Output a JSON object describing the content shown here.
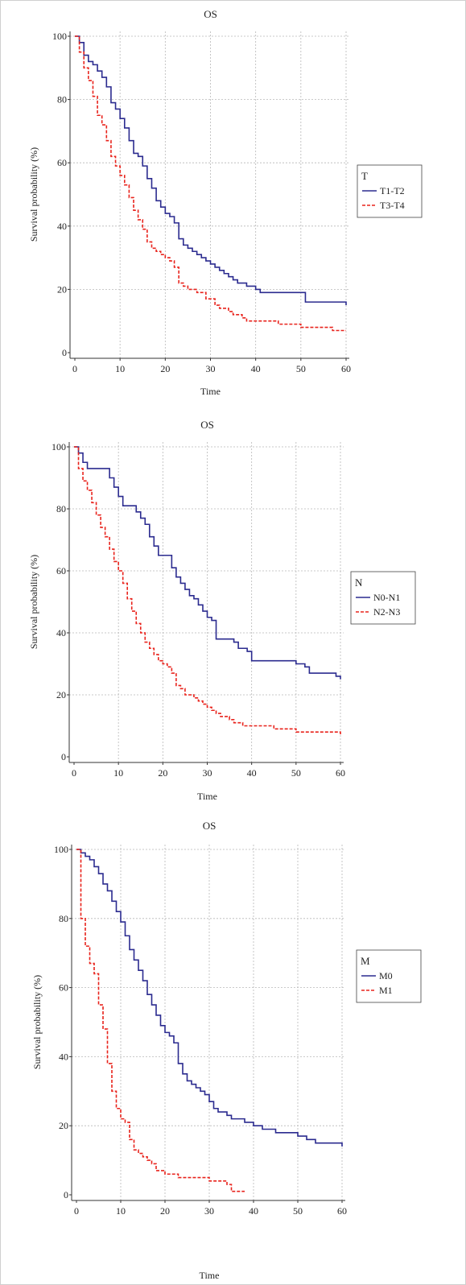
{
  "chart_data": [
    {
      "type": "line",
      "title": "OS",
      "xlabel": "Time",
      "ylabel": "Survival probability (%)",
      "xlim": [
        0,
        60
      ],
      "ylim": [
        0,
        100
      ],
      "xticks": [
        "0",
        "10",
        "20",
        "30",
        "40",
        "50",
        "60"
      ],
      "yticks": [
        "0",
        "20",
        "40",
        "60",
        "80",
        "100"
      ],
      "grid": true,
      "legend": {
        "title": "T",
        "placement": "right"
      },
      "series": [
        {
          "name": "T1-T2",
          "color": "#2b2b8f",
          "style": "solid",
          "points": [
            [
              0,
              100
            ],
            [
              1,
              98
            ],
            [
              2,
              94
            ],
            [
              3,
              92
            ],
            [
              4,
              91
            ],
            [
              5,
              89
            ],
            [
              6,
              87
            ],
            [
              7,
              84
            ],
            [
              8,
              79
            ],
            [
              9,
              77
            ],
            [
              10,
              74
            ],
            [
              11,
              71
            ],
            [
              12,
              67
            ],
            [
              13,
              63
            ],
            [
              14,
              62
            ],
            [
              15,
              59
            ],
            [
              16,
              55
            ],
            [
              17,
              52
            ],
            [
              18,
              48
            ],
            [
              19,
              46
            ],
            [
              20,
              44
            ],
            [
              21,
              43
            ],
            [
              22,
              41
            ],
            [
              23,
              36
            ],
            [
              24,
              34
            ],
            [
              25,
              33
            ],
            [
              26,
              32
            ],
            [
              27,
              31
            ],
            [
              28,
              30
            ],
            [
              29,
              29
            ],
            [
              30,
              28
            ],
            [
              31,
              27
            ],
            [
              32,
              26
            ],
            [
              33,
              25
            ],
            [
              34,
              24
            ],
            [
              35,
              23
            ],
            [
              36,
              22
            ],
            [
              38,
              21
            ],
            [
              40,
              20
            ],
            [
              41,
              19
            ],
            [
              45,
              19
            ],
            [
              50,
              19
            ],
            [
              51,
              16
            ],
            [
              55,
              16
            ],
            [
              59,
              16
            ],
            [
              60,
              15
            ]
          ]
        },
        {
          "name": "T3-T4",
          "color": "#e8231c",
          "style": "dashed",
          "points": [
            [
              0,
              100
            ],
            [
              1,
              95
            ],
            [
              2,
              90
            ],
            [
              3,
              86
            ],
            [
              4,
              81
            ],
            [
              5,
              75
            ],
            [
              6,
              72
            ],
            [
              7,
              67
            ],
            [
              8,
              62
            ],
            [
              9,
              59
            ],
            [
              10,
              56
            ],
            [
              11,
              53
            ],
            [
              12,
              49
            ],
            [
              13,
              45
            ],
            [
              14,
              42
            ],
            [
              15,
              39
            ],
            [
              16,
              35
            ],
            [
              17,
              33
            ],
            [
              18,
              32
            ],
            [
              19,
              31
            ],
            [
              20,
              30
            ],
            [
              21,
              29
            ],
            [
              22,
              27
            ],
            [
              23,
              22
            ],
            [
              24,
              21
            ],
            [
              25,
              20
            ],
            [
              26,
              20
            ],
            [
              27,
              19
            ],
            [
              28,
              19
            ],
            [
              29,
              17
            ],
            [
              30,
              17
            ],
            [
              31,
              15
            ],
            [
              32,
              14
            ],
            [
              34,
              13
            ],
            [
              35,
              12
            ],
            [
              36,
              12
            ],
            [
              37,
              11
            ],
            [
              38,
              10
            ],
            [
              40,
              10
            ],
            [
              43,
              10
            ],
            [
              45,
              9
            ],
            [
              47,
              9
            ],
            [
              50,
              8
            ],
            [
              53,
              8
            ],
            [
              55,
              8
            ],
            [
              57,
              7
            ],
            [
              60,
              7
            ]
          ]
        }
      ]
    },
    {
      "type": "line",
      "title": "OS",
      "xlabel": "Time",
      "ylabel": "Survival probability (%)",
      "xlim": [
        0,
        60
      ],
      "ylim": [
        0,
        100
      ],
      "xticks": [
        "0",
        "10",
        "20",
        "30",
        "40",
        "50",
        "60"
      ],
      "yticks": [
        "0",
        "20",
        "40",
        "60",
        "80",
        "100"
      ],
      "grid": true,
      "legend": {
        "title": "N",
        "placement": "right"
      },
      "series": [
        {
          "name": "N0-N1",
          "color": "#2b2b8f",
          "style": "solid",
          "points": [
            [
              0,
              100
            ],
            [
              1,
              98
            ],
            [
              2,
              95
            ],
            [
              3,
              93
            ],
            [
              5,
              93
            ],
            [
              7,
              93
            ],
            [
              8,
              90
            ],
            [
              9,
              87
            ],
            [
              10,
              84
            ],
            [
              11,
              81
            ],
            [
              13,
              81
            ],
            [
              14,
              79
            ],
            [
              15,
              77
            ],
            [
              16,
              75
            ],
            [
              17,
              71
            ],
            [
              18,
              68
            ],
            [
              19,
              65
            ],
            [
              21,
              65
            ],
            [
              22,
              61
            ],
            [
              23,
              58
            ],
            [
              24,
              56
            ],
            [
              25,
              54
            ],
            [
              26,
              52
            ],
            [
              27,
              51
            ],
            [
              28,
              49
            ],
            [
              29,
              47
            ],
            [
              30,
              45
            ],
            [
              31,
              44
            ],
            [
              32,
              38
            ],
            [
              35,
              38
            ],
            [
              36,
              37
            ],
            [
              37,
              35
            ],
            [
              39,
              34
            ],
            [
              40,
              31
            ],
            [
              45,
              31
            ],
            [
              48,
              31
            ],
            [
              50,
              30
            ],
            [
              52,
              29
            ],
            [
              53,
              27
            ],
            [
              58,
              27
            ],
            [
              59,
              26
            ],
            [
              60,
              25
            ]
          ]
        },
        {
          "name": "N2-N3",
          "color": "#e8231c",
          "style": "dashed",
          "points": [
            [
              0,
              100
            ],
            [
              1,
              93
            ],
            [
              2,
              89
            ],
            [
              3,
              86
            ],
            [
              4,
              82
            ],
            [
              5,
              78
            ],
            [
              6,
              74
            ],
            [
              7,
              71
            ],
            [
              8,
              67
            ],
            [
              9,
              63
            ],
            [
              10,
              60
            ],
            [
              11,
              56
            ],
            [
              12,
              51
            ],
            [
              13,
              47
            ],
            [
              14,
              43
            ],
            [
              15,
              40
            ],
            [
              16,
              37
            ],
            [
              17,
              35
            ],
            [
              18,
              33
            ],
            [
              19,
              31
            ],
            [
              20,
              30
            ],
            [
              21,
              29
            ],
            [
              22,
              27
            ],
            [
              23,
              23
            ],
            [
              24,
              22
            ],
            [
              25,
              20
            ],
            [
              26,
              20
            ],
            [
              27,
              19
            ],
            [
              28,
              18
            ],
            [
              29,
              17
            ],
            [
              30,
              16
            ],
            [
              31,
              15
            ],
            [
              32,
              14
            ],
            [
              33,
              13
            ],
            [
              35,
              12
            ],
            [
              36,
              11
            ],
            [
              38,
              10
            ],
            [
              40,
              10
            ],
            [
              43,
              10
            ],
            [
              45,
              9
            ],
            [
              48,
              9
            ],
            [
              50,
              8
            ],
            [
              53,
              8
            ],
            [
              57,
              8
            ],
            [
              60,
              7
            ]
          ]
        }
      ]
    },
    {
      "type": "line",
      "title": "OS",
      "xlabel": "Time",
      "ylabel": "Survival probability (%)",
      "xlim": [
        0,
        60
      ],
      "ylim": [
        0,
        100
      ],
      "xticks": [
        "0",
        "10",
        "20",
        "30",
        "40",
        "50",
        "60"
      ],
      "yticks": [
        "0",
        "20",
        "40",
        "60",
        "80",
        "100"
      ],
      "grid": true,
      "legend": {
        "title": "M",
        "placement": "right"
      },
      "series": [
        {
          "name": "M0",
          "color": "#2b2b8f",
          "style": "solid",
          "points": [
            [
              0,
              100
            ],
            [
              1,
              99
            ],
            [
              2,
              98
            ],
            [
              3,
              97
            ],
            [
              4,
              95
            ],
            [
              5,
              93
            ],
            [
              6,
              90
            ],
            [
              7,
              88
            ],
            [
              8,
              85
            ],
            [
              9,
              82
            ],
            [
              10,
              79
            ],
            [
              11,
              75
            ],
            [
              12,
              71
            ],
            [
              13,
              68
            ],
            [
              14,
              65
            ],
            [
              15,
              62
            ],
            [
              16,
              58
            ],
            [
              17,
              55
            ],
            [
              18,
              52
            ],
            [
              19,
              49
            ],
            [
              20,
              47
            ],
            [
              21,
              46
            ],
            [
              22,
              44
            ],
            [
              23,
              38
            ],
            [
              24,
              35
            ],
            [
              25,
              33
            ],
            [
              26,
              32
            ],
            [
              27,
              31
            ],
            [
              28,
              30
            ],
            [
              29,
              29
            ],
            [
              30,
              27
            ],
            [
              31,
              25
            ],
            [
              32,
              24
            ],
            [
              34,
              23
            ],
            [
              35,
              22
            ],
            [
              36,
              22
            ],
            [
              38,
              21
            ],
            [
              40,
              20
            ],
            [
              42,
              19
            ],
            [
              45,
              18
            ],
            [
              48,
              18
            ],
            [
              50,
              17
            ],
            [
              52,
              16
            ],
            [
              54,
              15
            ],
            [
              57,
              15
            ],
            [
              60,
              14
            ]
          ]
        },
        {
          "name": "M1",
          "color": "#e8231c",
          "style": "dashed",
          "points": [
            [
              0,
              100
            ],
            [
              1,
              80
            ],
            [
              2,
              72
            ],
            [
              3,
              67
            ],
            [
              4,
              64
            ],
            [
              5,
              55
            ],
            [
              6,
              48
            ],
            [
              7,
              38
            ],
            [
              8,
              30
            ],
            [
              9,
              25
            ],
            [
              10,
              22
            ],
            [
              11,
              21
            ],
            [
              12,
              16
            ],
            [
              13,
              13
            ],
            [
              14,
              12
            ],
            [
              15,
              11
            ],
            [
              16,
              10
            ],
            [
              17,
              9
            ],
            [
              18,
              7
            ],
            [
              19,
              7
            ],
            [
              20,
              6
            ],
            [
              22,
              6
            ],
            [
              23,
              5
            ],
            [
              25,
              5
            ],
            [
              27,
              5
            ],
            [
              30,
              4
            ],
            [
              32,
              4
            ],
            [
              34,
              3
            ],
            [
              35,
              1
            ],
            [
              38,
              1
            ]
          ]
        }
      ]
    }
  ]
}
